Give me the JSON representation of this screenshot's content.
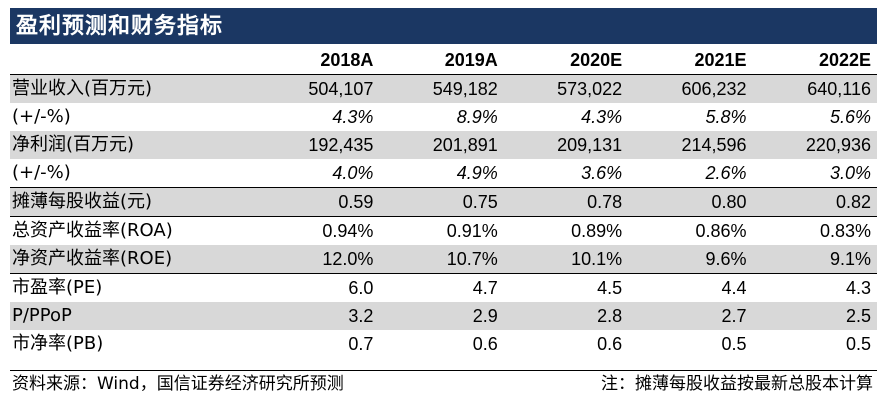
{
  "title": "盈利预测和财务指标",
  "header": [
    "",
    "2018A",
    "2019A",
    "2020E",
    "2021E",
    "2022E"
  ],
  "rows": [
    {
      "label": "营业收入(百万元)",
      "values": [
        "504,107",
        "549,182",
        "573,022",
        "606,232",
        "640,116"
      ],
      "italic": false
    },
    {
      "label": "(+/-%)",
      "values": [
        "4.3%",
        "8.9%",
        "4.3%",
        "5.8%",
        "5.6%"
      ],
      "italic": true
    },
    {
      "label": "净利润(百万元)",
      "values": [
        "192,435",
        "201,891",
        "209,131",
        "214,596",
        "220,936"
      ],
      "italic": false
    },
    {
      "label": "(+/-%)",
      "values": [
        "4.0%",
        "4.9%",
        "3.6%",
        "2.6%",
        "3.0%"
      ],
      "italic": true
    },
    {
      "label": "摊薄每股收益(元)",
      "values": [
        "0.59",
        "0.75",
        "0.78",
        "0.80",
        "0.82"
      ],
      "italic": false
    },
    {
      "label": "总资产收益率(ROA)",
      "values": [
        "0.94%",
        "0.91%",
        "0.89%",
        "0.86%",
        "0.83%"
      ],
      "italic": false
    },
    {
      "label": "净资产收益率(ROE)",
      "values": [
        "12.0%",
        "10.7%",
        "10.1%",
        "9.6%",
        "9.1%"
      ],
      "italic": false
    },
    {
      "label": "市盈率(PE)",
      "values": [
        "6.0",
        "4.7",
        "4.5",
        "4.4",
        "4.3"
      ],
      "italic": false
    },
    {
      "label": "P/PPoP",
      "values": [
        "3.2",
        "2.9",
        "2.8",
        "2.7",
        "2.5"
      ],
      "italic": false
    },
    {
      "label": "市净率(PB)",
      "values": [
        "0.7",
        "0.6",
        "0.6",
        "0.5",
        "0.5"
      ],
      "italic": false
    }
  ],
  "footer": {
    "source": "资料来源：Wind，国信证券经济研究所预测",
    "note": "注：摊薄每股收益按最新总股本计算"
  }
}
